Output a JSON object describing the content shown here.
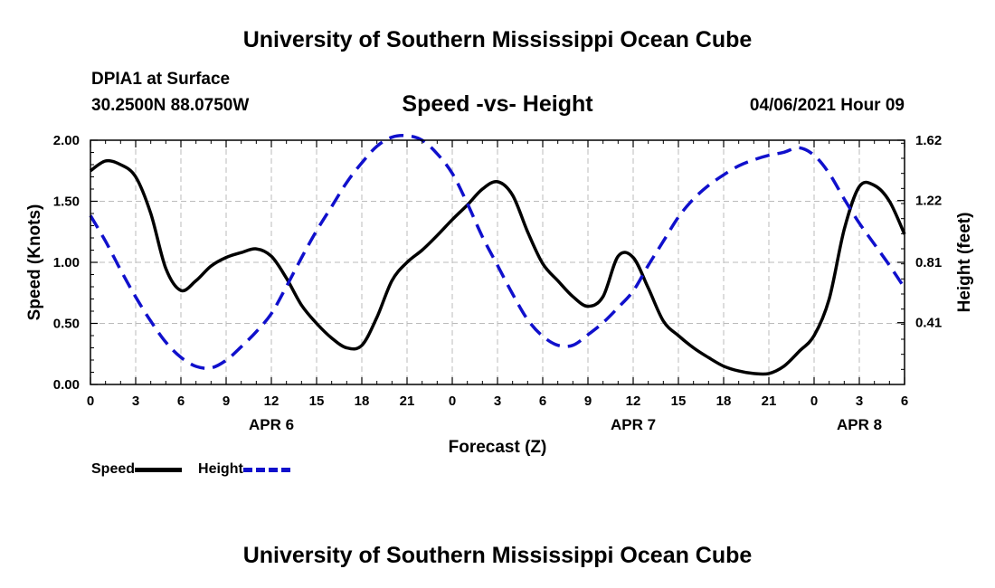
{
  "header": {
    "title_top": "University of Southern Mississippi Ocean Cube",
    "station": "DPIA1 at Surface",
    "coords": "30.2500N  88.0750W",
    "chart_title": "Speed -vs- Height",
    "datetime": "04/06/2021 Hour 09"
  },
  "legend": {
    "speed_label": "Speed",
    "height_label": "Height"
  },
  "footer": {
    "title_bottom": "University of Southern Mississippi Ocean Cube"
  },
  "colors": {
    "speed": "#000000",
    "height": "#1010cc",
    "grid": "#bbbbbb"
  },
  "chart_data": {
    "type": "line",
    "title": "Speed -vs- Height",
    "xlabel": "Forecast (Z)",
    "ylabel": "Speed (Knots)",
    "y2label": "Height (feet)",
    "xlim": [
      0,
      54
    ],
    "ylim": [
      0,
      2.0
    ],
    "y2lim": [
      0.0,
      1.62
    ],
    "yticks": [
      0.0,
      0.5,
      1.0,
      1.5,
      2.0
    ],
    "ytick_labels": [
      "0.00",
      "0.50",
      "1.00",
      "1.50",
      "2.00"
    ],
    "y2ticks": [
      0.41,
      0.81,
      1.22,
      1.62
    ],
    "y2tick_labels": [
      "0.41",
      "0.81",
      "1.22",
      "1.62"
    ],
    "xticks": [
      0,
      3,
      6,
      9,
      12,
      15,
      18,
      21,
      24,
      27,
      30,
      33,
      36,
      39,
      42,
      45,
      48,
      51,
      54
    ],
    "xtick_labels": [
      "0",
      "3",
      "6",
      "9",
      "12",
      "15",
      "18",
      "21",
      "0",
      "3",
      "6",
      "9",
      "12",
      "15",
      "18",
      "21",
      "0",
      "3",
      "6"
    ],
    "date_labels": [
      {
        "x": 12,
        "label": "APR 6"
      },
      {
        "x": 36,
        "label": "APR 7"
      },
      {
        "x": 51,
        "label": "APR 8"
      }
    ],
    "grid": true,
    "legend_position": "bottom-left",
    "series": [
      {
        "name": "Speed",
        "axis": "left",
        "style": "solid",
        "x": [
          0,
          1,
          2,
          3,
          4,
          5,
          6,
          7,
          8,
          9,
          10,
          11,
          12,
          13,
          14,
          15,
          16,
          17,
          18,
          19,
          20,
          21,
          22,
          23,
          24,
          25,
          26,
          27,
          28,
          29,
          30,
          31,
          32,
          33,
          34,
          35,
          36,
          37,
          38,
          39,
          40,
          41,
          42,
          43,
          44,
          45,
          46,
          47,
          48,
          49,
          50,
          51,
          52,
          53,
          54
        ],
        "values": [
          1.75,
          1.83,
          1.8,
          1.7,
          1.4,
          0.95,
          0.77,
          0.85,
          0.97,
          1.04,
          1.08,
          1.11,
          1.05,
          0.87,
          0.65,
          0.5,
          0.38,
          0.3,
          0.32,
          0.55,
          0.85,
          1.0,
          1.1,
          1.22,
          1.35,
          1.47,
          1.6,
          1.66,
          1.55,
          1.25,
          0.99,
          0.85,
          0.72,
          0.64,
          0.72,
          1.05,
          1.04,
          0.79,
          0.52,
          0.4,
          0.3,
          0.22,
          0.15,
          0.11,
          0.09,
          0.09,
          0.15,
          0.27,
          0.4,
          0.7,
          1.27,
          1.62,
          1.63,
          1.5,
          1.23
        ]
      },
      {
        "name": "Height",
        "axis": "right",
        "style": "dashed",
        "x": [
          0,
          1,
          2,
          3,
          4,
          5,
          6,
          7,
          8,
          9,
          10,
          11,
          12,
          13,
          14,
          15,
          16,
          17,
          18,
          19,
          20,
          21,
          22,
          23,
          24,
          25,
          26,
          27,
          28,
          29,
          30,
          31,
          32,
          33,
          34,
          35,
          36,
          37,
          38,
          39,
          40,
          41,
          42,
          43,
          44,
          45,
          46,
          47,
          48,
          49,
          50,
          51,
          52,
          53,
          54
        ],
        "values": [
          1.12,
          0.95,
          0.76,
          0.58,
          0.42,
          0.28,
          0.18,
          0.12,
          0.11,
          0.16,
          0.25,
          0.35,
          0.47,
          0.65,
          0.84,
          1.02,
          1.18,
          1.34,
          1.47,
          1.58,
          1.64,
          1.65,
          1.62,
          1.53,
          1.4,
          1.2,
          0.98,
          0.79,
          0.6,
          0.43,
          0.32,
          0.26,
          0.26,
          0.33,
          0.41,
          0.51,
          0.62,
          0.79,
          0.95,
          1.11,
          1.23,
          1.32,
          1.39,
          1.45,
          1.49,
          1.52,
          1.54,
          1.57,
          1.52,
          1.4,
          1.23,
          1.07,
          0.93,
          0.79,
          0.64
        ]
      }
    ]
  }
}
